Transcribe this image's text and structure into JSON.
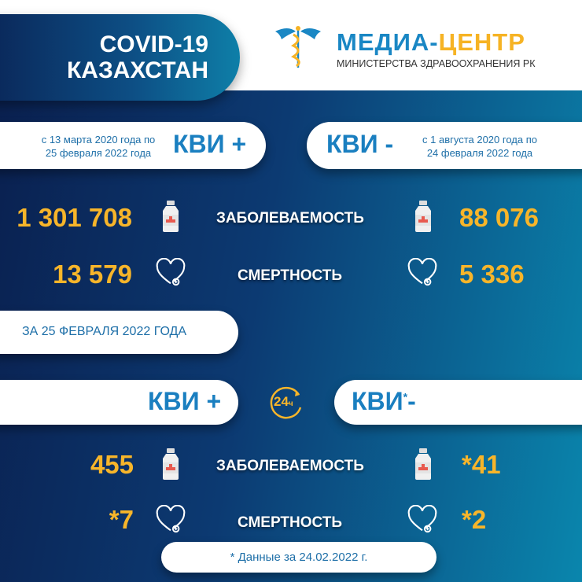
{
  "header": {
    "title_line1": "COVID-19",
    "title_line2": "КАЗАХСТАН",
    "logo_part1": "МЕДИА-",
    "logo_part2": "ЦЕНТР",
    "logo_sub": "МИНИСТЕРСТВА ЗДРАВООХРАНЕНИЯ РК"
  },
  "cumulative": {
    "left": {
      "label": "КВИ +",
      "period_line1": "с 13 марта 2020 года по",
      "period_line2": "25 февраля 2022 года"
    },
    "right": {
      "label": "КВИ -",
      "period_line1": "с 1 августа 2020 года по",
      "period_line2": "24 февраля 2022 года"
    },
    "morbidity": {
      "label": "ЗАБОЛЕВАЕМОСТЬ",
      "left": "1 301 708",
      "right": "88 076"
    },
    "mortality": {
      "label": "СМЕРТНОСТЬ",
      "left": "13 579",
      "right": "5 336"
    }
  },
  "daily": {
    "date_label": "ЗА 25 ФЕВРАЛЯ 2022 ГОДА",
    "left_label": "КВИ +",
    "right_label": "КВИ",
    "right_sign": "-",
    "right_asterisk": "*",
    "badge": "24",
    "badge_unit": "ч",
    "morbidity": {
      "label": "ЗАБОЛЕВАЕМОСТЬ",
      "left": "455",
      "right": "*41"
    },
    "mortality": {
      "label": "СМЕРТНОСТЬ",
      "left": "*7",
      "right": "*2"
    }
  },
  "footnote": "* Данные за 24.02.2022 г.",
  "colors": {
    "number": "#f7b52a",
    "kvi": "#1a7fc0",
    "navy": "#0a1f4e",
    "teal": "#0a86ad"
  }
}
